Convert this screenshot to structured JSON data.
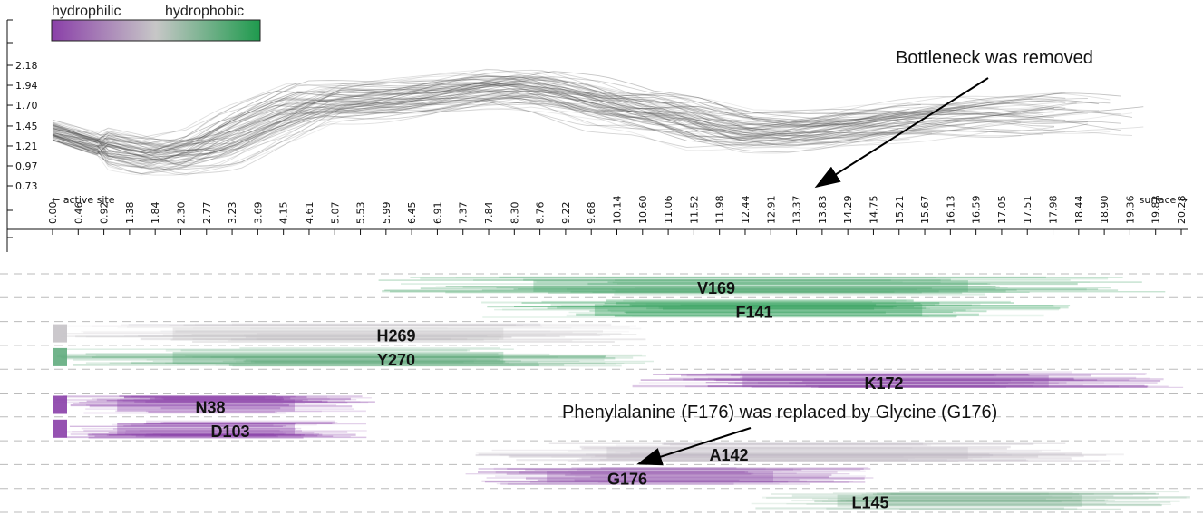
{
  "colors": {
    "hydrophilic": "#8a3fa8",
    "neutral": "#c7c7c7",
    "hydrophobic": "#1e9a4d",
    "profile_lines": "#555555"
  },
  "legend": {
    "left_label": "hydrophilic",
    "right_label": "hydrophobic"
  },
  "annotations": {
    "bottleneck": "Bottleneck was removed",
    "mutation": "Phenylalanine (F176) was replaced by Glycine (G176)"
  },
  "chart_data": {
    "type": "line",
    "direction_labels": {
      "left": "← active site",
      "right": "surface →"
    },
    "y_ticks": [
      "2.18",
      "1.94",
      "1.70",
      "1.45",
      "1.21",
      "0.97",
      "0.73"
    ],
    "y_tick_values": [
      2.18,
      1.94,
      1.7,
      1.45,
      1.21,
      0.97,
      0.73
    ],
    "x_ticks": [
      "0.00",
      "0.46",
      "0.92",
      "1.38",
      "1.84",
      "2.30",
      "2.77",
      "3.23",
      "3.69",
      "4.15",
      "4.61",
      "5.07",
      "5.53",
      "5.99",
      "6.45",
      "6.91",
      "7.37",
      "7.84",
      "8.30",
      "8.76",
      "9.22",
      "9.68",
      "10.14",
      "10.60",
      "11.06",
      "11.52",
      "11.98",
      "12.44",
      "12.91",
      "13.37",
      "13.83",
      "14.29",
      "14.75",
      "15.21",
      "15.67",
      "16.13",
      "16.59",
      "17.05",
      "17.51",
      "17.98",
      "18.44",
      "18.90",
      "19.36",
      "19.82",
      "20.28"
    ],
    "xlim": [
      0,
      20.28
    ],
    "ylim": [
      0.73,
      2.18
    ],
    "mean_profile": {
      "x": [
        0,
        0.92,
        1.84,
        2.77,
        3.69,
        4.61,
        5.53,
        6.45,
        7.37,
        8.3,
        9.22,
        10.14,
        11.06,
        11.98,
        12.91,
        13.83,
        14.75,
        15.67,
        16.59,
        17.51,
        18.44
      ],
      "y": [
        1.4,
        1.2,
        1.05,
        1.15,
        1.45,
        1.72,
        1.75,
        1.8,
        1.88,
        1.92,
        1.8,
        1.62,
        1.58,
        1.4,
        1.38,
        1.42,
        1.48,
        1.52,
        1.55,
        1.55,
        1.6
      ]
    },
    "profile_count": 70,
    "residues": [
      {
        "name": "V169",
        "range": [
          5.8,
          20.0
        ],
        "level": 0.85
      },
      {
        "name": "F141",
        "range": [
          7.6,
          18.3
        ],
        "level": 0.95
      },
      {
        "name": "H269",
        "range": [
          0.0,
          10.8
        ],
        "level": 0.48
      },
      {
        "name": "Y270",
        "range": [
          0.0,
          10.8
        ],
        "level": 0.8
      },
      {
        "name": "K172",
        "range": [
          10.4,
          20.4
        ],
        "level": 0.05
      },
      {
        "name": "N38",
        "range": [
          0.0,
          5.8
        ],
        "level": 0.0
      },
      {
        "name": "D103",
        "range": [
          0.0,
          5.8
        ],
        "level": 0.0
      },
      {
        "name": "A142",
        "range": [
          7.6,
          19.4
        ],
        "level": 0.45
      },
      {
        "name": "G176",
        "range": [
          7.4,
          14.8
        ],
        "level": 0.1
      },
      {
        "name": "L145",
        "range": [
          12.5,
          20.5
        ],
        "level": 0.7
      }
    ]
  }
}
